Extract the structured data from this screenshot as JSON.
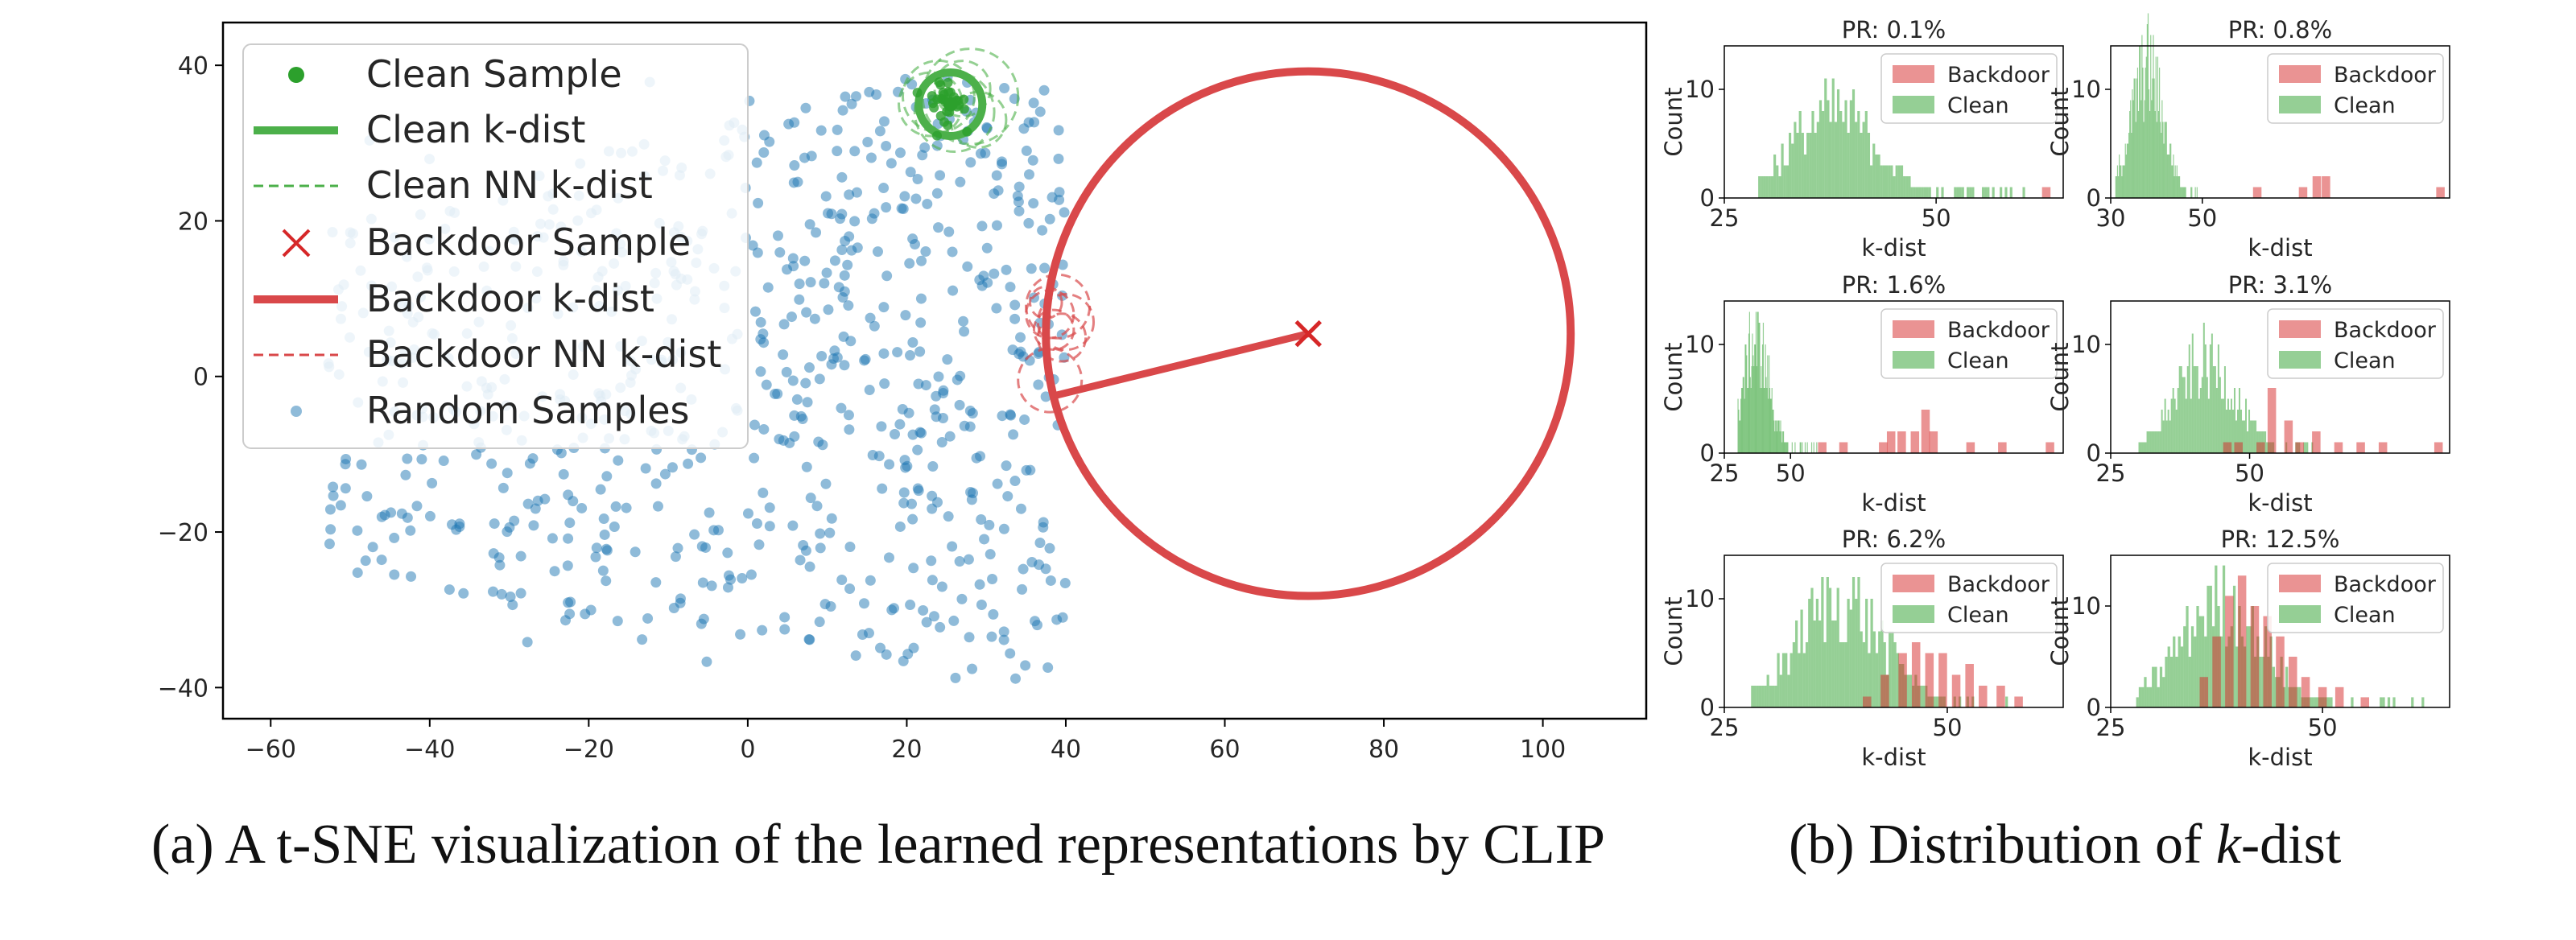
{
  "captions": {
    "a": "(a) A t-SNE visualization of the learned representations by CLIP",
    "b_prefix": "(b) Distribution of ",
    "b_var": "k",
    "b_suffix": "-dist"
  },
  "colors": {
    "clean": "#2ca02c",
    "backdoor": "#d62728",
    "random": "#1f77b4",
    "clean_ring": "#4cb04a",
    "backdoor_ring": "#d9484a"
  },
  "chart_data": [
    {
      "type": "scatter",
      "title": "",
      "xlabel": "",
      "ylabel": "",
      "xlim": [
        -66,
        113
      ],
      "ylim": [
        -44,
        45.5
      ],
      "xticks": [
        -60,
        -40,
        -20,
        0,
        20,
        40,
        60,
        80,
        100
      ],
      "yticks": [
        -40,
        -20,
        0,
        20,
        40
      ],
      "grid": false,
      "legend_position": "top-left",
      "legend": [
        "Clean Sample",
        "Clean k-dist",
        "Clean NN k-dist",
        "Backdoor Sample",
        "Backdoor k-dist",
        "Backdoor NN k-dist",
        "Random Samples"
      ],
      "clean_sample": {
        "x": 25.5,
        "y": 35
      },
      "clean_kdist_radius": 4,
      "clean_nn_circles": [
        {
          "x": 28,
          "y": 36,
          "r": 6
        },
        {
          "x": 26,
          "y": 34,
          "r": 5
        },
        {
          "x": 24,
          "y": 36,
          "r": 4.5
        },
        {
          "x": 27,
          "y": 37,
          "r": 3.5
        },
        {
          "x": 23,
          "y": 35,
          "r": 4
        },
        {
          "x": 29,
          "y": 33,
          "r": 3.5
        }
      ],
      "backdoor_sample": {
        "x": 70.5,
        "y": 5.5
      },
      "backdoor_kdist_radius": 33,
      "backdoor_nn_circles": [
        {
          "x": 39,
          "y": 9,
          "r": 4
        },
        {
          "x": 38,
          "y": 8,
          "r": 3
        },
        {
          "x": 38.5,
          "y": 6,
          "r": 2.5
        },
        {
          "x": 40,
          "y": 7,
          "r": 3.5
        },
        {
          "x": 37.5,
          "y": 9.5,
          "r": 2
        },
        {
          "x": 39.5,
          "y": 5,
          "r": 3
        },
        {
          "x": 38,
          "y": -0.5,
          "r": 4
        }
      ],
      "nn_line": {
        "x1": 38.5,
        "y1": -2.5,
        "x2": 70.5,
        "y2": 5.5
      },
      "random_samples": {
        "count": 750,
        "x_range": [
          -53,
          40
        ],
        "y_range": [
          -40,
          40
        ]
      }
    },
    {
      "type": "histogram",
      "xlabel": "k-dist",
      "ylabel": "Count",
      "legend_position": "top-right",
      "panels": [
        {
          "title": "PR: 0.1%",
          "xlim": [
            25,
            65
          ],
          "xticks": [
            25,
            50
          ],
          "ylim": [
            0,
            14
          ],
          "yticks": [
            0,
            10
          ],
          "clean": {
            "mu": 38,
            "sd": 5,
            "peak": 8.5,
            "lo": 29,
            "hi": 62
          },
          "backdoor": [
            {
              "x": 63,
              "v": 1
            }
          ]
        },
        {
          "title": "PR: 0.8%",
          "xlim": [
            30,
            104
          ],
          "xticks": [
            30,
            50
          ],
          "ylim": [
            0,
            14
          ],
          "yticks": [
            0,
            10
          ],
          "clean": {
            "mu": 38,
            "sd": 3.5,
            "peak": 13,
            "lo": 31,
            "hi": 52
          },
          "backdoor": [
            {
              "x": 62,
              "v": 1
            },
            {
              "x": 72,
              "v": 1
            },
            {
              "x": 75,
              "v": 2
            },
            {
              "x": 77,
              "v": 2
            },
            {
              "x": 102,
              "v": 1
            }
          ]
        },
        {
          "title": "PR: 1.6%",
          "xlim": [
            25,
            153
          ],
          "xticks": [
            25,
            50
          ],
          "ylim": [
            0,
            14
          ],
          "yticks": [
            0,
            10
          ],
          "clean": {
            "mu": 37,
            "sd": 5,
            "peak": 11,
            "lo": 30,
            "hi": 60
          },
          "backdoor": [
            {
              "x": 62,
              "v": 1
            },
            {
              "x": 70,
              "v": 1
            },
            {
              "x": 85,
              "v": 1
            },
            {
              "x": 88,
              "v": 2
            },
            {
              "x": 92,
              "v": 2
            },
            {
              "x": 97,
              "v": 2
            },
            {
              "x": 101,
              "v": 4
            },
            {
              "x": 104,
              "v": 2
            },
            {
              "x": 118,
              "v": 1
            },
            {
              "x": 130,
              "v": 1
            },
            {
              "x": 148,
              "v": 1
            }
          ]
        },
        {
          "title": "PR: 3.1%",
          "xlim": [
            25,
            86
          ],
          "xticks": [
            25,
            50
          ],
          "ylim": [
            0,
            14
          ],
          "yticks": [
            0,
            10
          ],
          "clean": {
            "mu": 42,
            "sd": 5.5,
            "peak": 9,
            "lo": 30,
            "hi": 62
          },
          "backdoor": [
            {
              "x": 46,
              "v": 1
            },
            {
              "x": 48,
              "v": 1
            },
            {
              "x": 52,
              "v": 1
            },
            {
              "x": 54,
              "v": 6
            },
            {
              "x": 57,
              "v": 3
            },
            {
              "x": 59,
              "v": 1
            },
            {
              "x": 62,
              "v": 2
            },
            {
              "x": 66,
              "v": 1
            },
            {
              "x": 70,
              "v": 1
            },
            {
              "x": 74,
              "v": 1
            },
            {
              "x": 84,
              "v": 1
            }
          ]
        },
        {
          "title": "PR: 6.2%",
          "xlim": [
            25,
            63
          ],
          "xticks": [
            25,
            50
          ],
          "ylim": [
            0,
            14
          ],
          "yticks": [
            0,
            10
          ],
          "clean": {
            "mu": 38,
            "sd": 5,
            "peak": 10.5,
            "lo": 28,
            "hi": 60
          },
          "backdoor": [
            {
              "x": 41,
              "v": 1
            },
            {
              "x": 43,
              "v": 3
            },
            {
              "x": 45,
              "v": 5
            },
            {
              "x": 46.5,
              "v": 6
            },
            {
              "x": 48,
              "v": 5
            },
            {
              "x": 49.5,
              "v": 5
            },
            {
              "x": 51,
              "v": 3
            },
            {
              "x": 52.5,
              "v": 4
            },
            {
              "x": 54,
              "v": 2
            },
            {
              "x": 56,
              "v": 2
            },
            {
              "x": 58,
              "v": 1
            }
          ]
        },
        {
          "title": "PR: 12.5%",
          "xlim": [
            25,
            65
          ],
          "xticks": [
            25,
            50
          ],
          "ylim": [
            0,
            15
          ],
          "yticks": [
            0,
            10
          ],
          "clean": {
            "mu": 38,
            "sd": 5,
            "peak": 11,
            "lo": 28,
            "hi": 62
          },
          "backdoor": [
            {
              "x": 36,
              "v": 3
            },
            {
              "x": 37.5,
              "v": 7
            },
            {
              "x": 39,
              "v": 11
            },
            {
              "x": 40.5,
              "v": 13
            },
            {
              "x": 42,
              "v": 10
            },
            {
              "x": 43.5,
              "v": 9
            },
            {
              "x": 45,
              "v": 7
            },
            {
              "x": 46.5,
              "v": 5
            },
            {
              "x": 48,
              "v": 3
            },
            {
              "x": 50,
              "v": 2
            },
            {
              "x": 52,
              "v": 2
            },
            {
              "x": 55,
              "v": 1
            }
          ]
        }
      ],
      "legend": [
        "Backdoor",
        "Clean"
      ]
    }
  ]
}
